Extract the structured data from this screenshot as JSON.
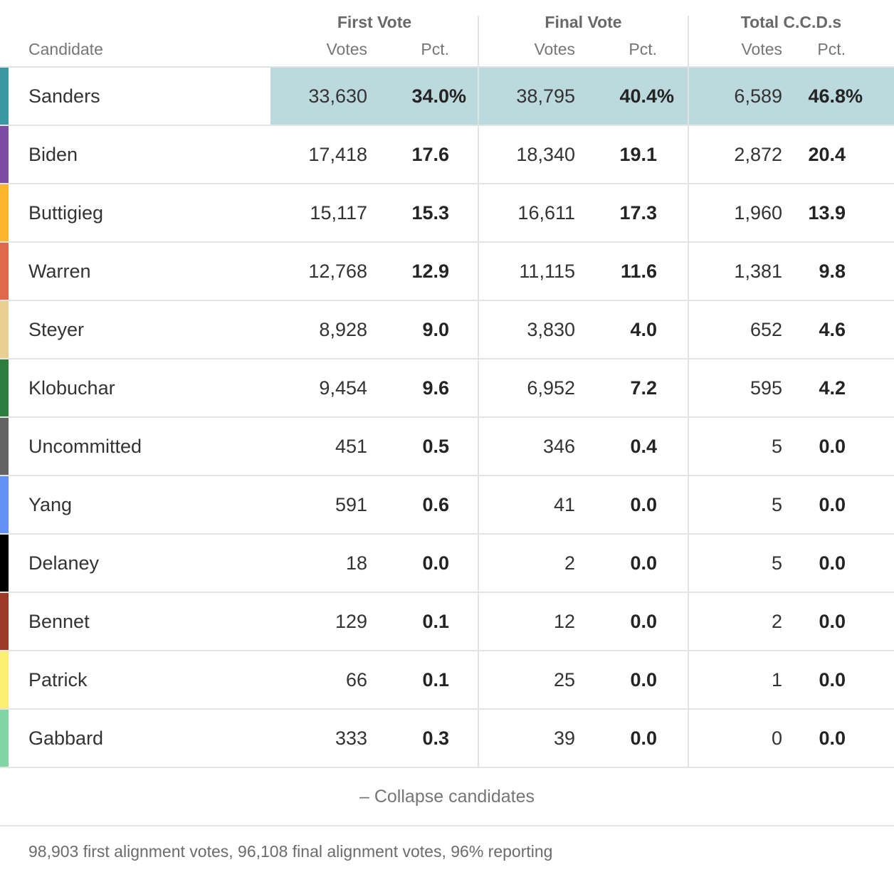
{
  "table": {
    "header": {
      "candidate_label": "Candidate",
      "groups": [
        {
          "title": "First Vote",
          "votes_label": "Votes",
          "pct_label": "Pct."
        },
        {
          "title": "Final Vote",
          "votes_label": "Votes",
          "pct_label": "Pct."
        },
        {
          "title": "Total C.C.D.s",
          "votes_label": "Votes",
          "pct_label": "Pct."
        }
      ]
    },
    "rows": [
      {
        "name": "Sanders",
        "color": "#3998a1",
        "highlighted": true,
        "pct_suffix": "%",
        "fv_votes": "33,630",
        "fv_pct": "34.0",
        "fin_votes": "38,795",
        "fin_pct": "40.4",
        "ccd_votes": "6,589",
        "ccd_pct": "46.8"
      },
      {
        "name": "Biden",
        "color": "#7c4da3",
        "highlighted": false,
        "fv_votes": "17,418",
        "fv_pct": "17.6",
        "fin_votes": "18,340",
        "fin_pct": "19.1",
        "ccd_votes": "2,872",
        "ccd_pct": "20.4"
      },
      {
        "name": "Buttigieg",
        "color": "#fdb62b",
        "highlighted": false,
        "fv_votes": "15,117",
        "fv_pct": "15.3",
        "fin_votes": "16,611",
        "fin_pct": "17.3",
        "ccd_votes": "1,960",
        "ccd_pct": "13.9"
      },
      {
        "name": "Warren",
        "color": "#e0684b",
        "highlighted": false,
        "fv_votes": "12,768",
        "fv_pct": "12.9",
        "fin_votes": "11,115",
        "fin_pct": "11.6",
        "ccd_votes": "1,381",
        "ccd_pct": "9.8"
      },
      {
        "name": "Steyer",
        "color": "#e9cf92",
        "highlighted": false,
        "fv_votes": "8,928",
        "fv_pct": "9.0",
        "fin_votes": "3,830",
        "fin_pct": "4.0",
        "ccd_votes": "652",
        "ccd_pct": "4.6"
      },
      {
        "name": "Klobuchar",
        "color": "#2d7e3e",
        "highlighted": false,
        "fv_votes": "9,454",
        "fv_pct": "9.6",
        "fin_votes": "6,952",
        "fin_pct": "7.2",
        "ccd_votes": "595",
        "ccd_pct": "4.2"
      },
      {
        "name": "Uncommitted",
        "color": "#636363",
        "highlighted": false,
        "fv_votes": "451",
        "fv_pct": "0.5",
        "fin_votes": "346",
        "fin_pct": "0.4",
        "ccd_votes": "5",
        "ccd_pct": "0.0"
      },
      {
        "name": "Yang",
        "color": "#6292f3",
        "highlighted": false,
        "fv_votes": "591",
        "fv_pct": "0.6",
        "fin_votes": "41",
        "fin_pct": "0.0",
        "ccd_votes": "5",
        "ccd_pct": "0.0"
      },
      {
        "name": "Delaney",
        "color": "#000000",
        "highlighted": false,
        "fv_votes": "18",
        "fv_pct": "0.0",
        "fin_votes": "2",
        "fin_pct": "0.0",
        "ccd_votes": "5",
        "ccd_pct": "0.0"
      },
      {
        "name": "Bennet",
        "color": "#9c3b25",
        "highlighted": false,
        "fv_votes": "129",
        "fv_pct": "0.1",
        "fin_votes": "12",
        "fin_pct": "0.0",
        "ccd_votes": "2",
        "ccd_pct": "0.0"
      },
      {
        "name": "Patrick",
        "color": "#faee73",
        "highlighted": false,
        "fv_votes": "66",
        "fv_pct": "0.1",
        "fin_votes": "25",
        "fin_pct": "0.0",
        "ccd_votes": "1",
        "ccd_pct": "0.0"
      },
      {
        "name": "Gabbard",
        "color": "#7fd6a4",
        "highlighted": false,
        "fv_votes": "333",
        "fv_pct": "0.3",
        "fin_votes": "39",
        "fin_pct": "0.0",
        "ccd_votes": "0",
        "ccd_pct": "0.0"
      }
    ],
    "collapse_label": "– Collapse candidates",
    "footnote": "98,903 first alignment votes, 96,108 final alignment votes, 96% reporting"
  },
  "colors": {
    "highlight": "#bcd9de",
    "row_border": "#e4e4e4",
    "divider": "#e2e2e2"
  },
  "chart_data": {
    "type": "table",
    "columns": [
      "Candidate",
      "First Vote Votes",
      "First Vote Pct.",
      "Final Vote Votes",
      "Final Vote Pct.",
      "Total C.C.D.s Votes",
      "Total C.C.D.s Pct."
    ],
    "rows": [
      [
        "Sanders",
        33630,
        34.0,
        38795,
        40.4,
        6589,
        46.8
      ],
      [
        "Biden",
        17418,
        17.6,
        18340,
        19.1,
        2872,
        20.4
      ],
      [
        "Buttigieg",
        15117,
        15.3,
        16611,
        17.3,
        1960,
        13.9
      ],
      [
        "Warren",
        12768,
        12.9,
        11115,
        11.6,
        1381,
        9.8
      ],
      [
        "Steyer",
        8928,
        9.0,
        3830,
        4.0,
        652,
        4.6
      ],
      [
        "Klobuchar",
        9454,
        9.6,
        6952,
        7.2,
        595,
        4.2
      ],
      [
        "Uncommitted",
        451,
        0.5,
        346,
        0.4,
        5,
        0.0
      ],
      [
        "Yang",
        591,
        0.6,
        41,
        0.0,
        5,
        0.0
      ],
      [
        "Delaney",
        18,
        0.0,
        2,
        0.0,
        5,
        0.0
      ],
      [
        "Bennet",
        129,
        0.1,
        12,
        0.0,
        2,
        0.0
      ],
      [
        "Patrick",
        66,
        0.1,
        25,
        0.0,
        1,
        0.0
      ],
      [
        "Gabbard",
        333,
        0.3,
        39,
        0.0,
        0,
        0.0
      ]
    ],
    "highlighted_row": "Sanders",
    "notes": "98,903 first alignment votes, 96,108 final alignment votes, 96% reporting"
  }
}
